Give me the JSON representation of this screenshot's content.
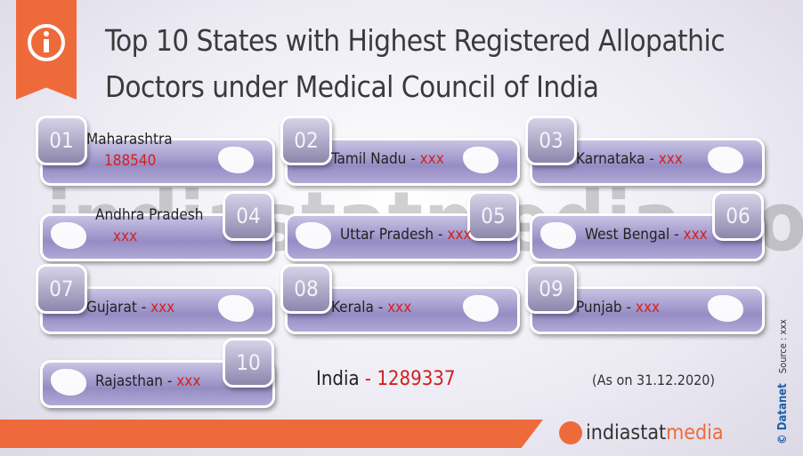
{
  "header": {
    "title_line1": "Top 10 States with Highest Registered Allopathic",
    "title_line2": "Doctors under Medical Council of India"
  },
  "separator": "-",
  "states": [
    {
      "rank": "01",
      "name": "Maharashtra",
      "value": 188540
    },
    {
      "rank": "02",
      "name": "Tamil Nadu",
      "value": "xxx"
    },
    {
      "rank": "03",
      "name": "Karnataka",
      "value": "xxx"
    },
    {
      "rank": "04",
      "name": "Andhra Pradesh",
      "value": "xxx"
    },
    {
      "rank": "05",
      "name": "Uttar Pradesh",
      "value": "xxx"
    },
    {
      "rank": "06",
      "name": "West Bengal",
      "value": "xxx"
    },
    {
      "rank": "07",
      "name": "Gujarat",
      "value": "xxx"
    },
    {
      "rank": "08",
      "name": "Kerala",
      "value": "xxx"
    },
    {
      "rank": "09",
      "name": "Punjab",
      "value": "xxx"
    },
    {
      "rank": "10",
      "name": "Rajasthan",
      "value": "xxx"
    }
  ],
  "total": {
    "name": "India",
    "value": 1289337
  },
  "date_note": "(As on 31.12.2020)",
  "watermark": "indiastatmedia.com",
  "source": "Source : xxx",
  "copyright": "© Datanet",
  "logo": {
    "part1": "indiastat",
    "part2": "media"
  }
}
